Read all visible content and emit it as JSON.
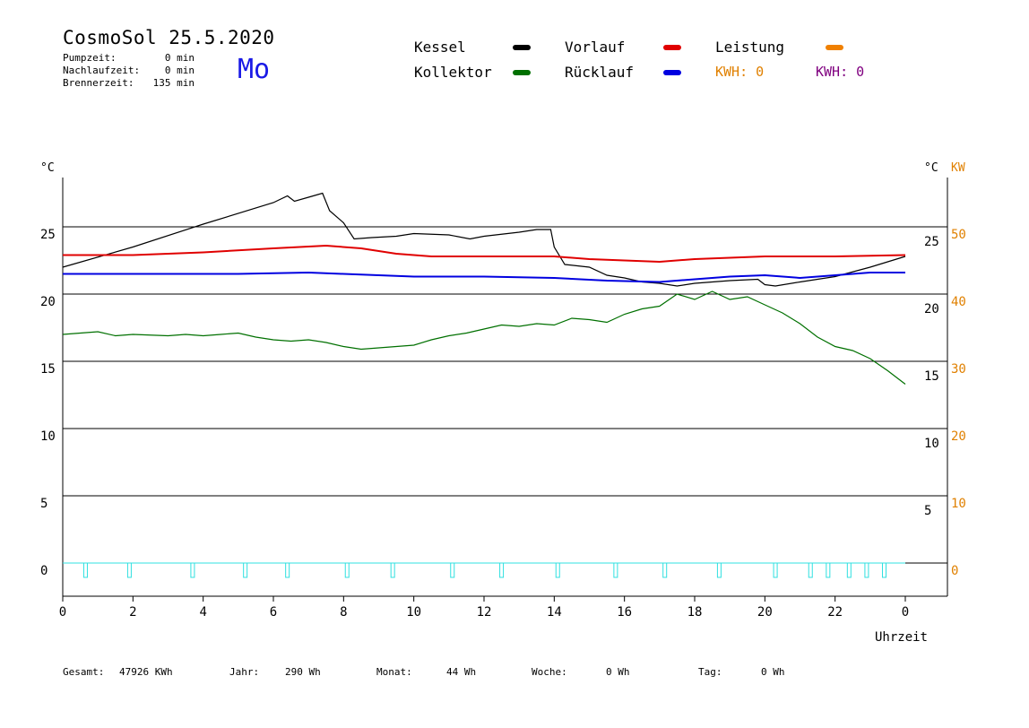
{
  "header": {
    "title": "CosmoSol 25.5.2020",
    "day": "Mo",
    "stats": [
      {
        "label": "Pumpzeit:",
        "value": "0 min"
      },
      {
        "label": "Nachlaufzeit:",
        "value": "0 min"
      },
      {
        "label": "Brennerzeit:",
        "value": "135 min"
      }
    ]
  },
  "legend": [
    {
      "label": "Kessel",
      "color": "#000000"
    },
    {
      "label": "Kollektor",
      "color": "#007000"
    },
    {
      "label": "Vorlauf",
      "color": "#e00000"
    },
    {
      "label": "Rücklauf",
      "color": "#0000e0"
    },
    {
      "label": "Leistung",
      "color": "#f08000"
    }
  ],
  "kwh": [
    {
      "text": "KWH: 0",
      "color": "#e08000"
    },
    {
      "text": "KWH: 0",
      "color": "#800080"
    }
  ],
  "axis_units": {
    "left": "°C",
    "right_c": "°C",
    "right_kw": "KW",
    "x": "Uhrzeit"
  },
  "footer": [
    {
      "label": "Gesamt:",
      "value": "47926 KWh"
    },
    {
      "label": "Jahr:",
      "value": "290 Wh"
    },
    {
      "label": "Monat:",
      "value": "44 Wh"
    },
    {
      "label": "Woche:",
      "value": "0 Wh"
    },
    {
      "label": "Tag:",
      "value": "0 Wh"
    }
  ],
  "chart_data": {
    "type": "line",
    "xlabel": "Uhrzeit",
    "ylabel": "°C",
    "xlim": [
      0,
      24
    ],
    "ylim": [
      -2.5,
      29
    ],
    "x_ticks": [
      "0",
      "2",
      "4",
      "6",
      "8",
      "10",
      "12",
      "14",
      "16",
      "18",
      "20",
      "22",
      "0"
    ],
    "y_ticks_left": [
      0,
      5,
      10,
      15,
      20,
      25
    ],
    "y_ticks_right_c": [
      5,
      10,
      15,
      20,
      25
    ],
    "y_ticks_right_kw": [
      0,
      10,
      20,
      30,
      40,
      50
    ],
    "grid": "horizontal",
    "series": [
      {
        "name": "Kessel",
        "color": "#000000",
        "points": [
          [
            0,
            22.0
          ],
          [
            2,
            23.5
          ],
          [
            4,
            25.2
          ],
          [
            6,
            26.8
          ],
          [
            6.4,
            27.3
          ],
          [
            6.6,
            26.9
          ],
          [
            7,
            27.2
          ],
          [
            7.4,
            27.5
          ],
          [
            7.6,
            26.2
          ],
          [
            8,
            25.3
          ],
          [
            8.3,
            24.1
          ],
          [
            8.8,
            24.2
          ],
          [
            9.5,
            24.3
          ],
          [
            10,
            24.5
          ],
          [
            11,
            24.4
          ],
          [
            11.6,
            24.1
          ],
          [
            12,
            24.3
          ],
          [
            13,
            24.6
          ],
          [
            13.5,
            24.8
          ],
          [
            13.9,
            24.8
          ],
          [
            14,
            23.5
          ],
          [
            14.3,
            22.2
          ],
          [
            15,
            22.0
          ],
          [
            15.5,
            21.4
          ],
          [
            16,
            21.2
          ],
          [
            16.5,
            20.9
          ],
          [
            17,
            20.8
          ],
          [
            17.5,
            20.6
          ],
          [
            18,
            20.8
          ],
          [
            19,
            21.0
          ],
          [
            19.8,
            21.1
          ],
          [
            20,
            20.7
          ],
          [
            20.3,
            20.6
          ],
          [
            21,
            20.9
          ],
          [
            22,
            21.3
          ],
          [
            23,
            22.0
          ],
          [
            24,
            22.8
          ]
        ]
      },
      {
        "name": "Vorlauf",
        "color": "#e00000",
        "points": [
          [
            0,
            22.9
          ],
          [
            2,
            22.9
          ],
          [
            4,
            23.1
          ],
          [
            6,
            23.4
          ],
          [
            7.5,
            23.6
          ],
          [
            8.5,
            23.4
          ],
          [
            9.5,
            23.0
          ],
          [
            10.5,
            22.8
          ],
          [
            12,
            22.8
          ],
          [
            14,
            22.8
          ],
          [
            15,
            22.6
          ],
          [
            16,
            22.5
          ],
          [
            17,
            22.4
          ],
          [
            18,
            22.6
          ],
          [
            20,
            22.8
          ],
          [
            22,
            22.8
          ],
          [
            24,
            22.9
          ]
        ]
      },
      {
        "name": "Rücklauf",
        "color": "#0000e0",
        "points": [
          [
            0,
            21.5
          ],
          [
            3,
            21.5
          ],
          [
            5,
            21.5
          ],
          [
            7,
            21.6
          ],
          [
            8,
            21.5
          ],
          [
            10,
            21.3
          ],
          [
            12,
            21.3
          ],
          [
            14,
            21.2
          ],
          [
            15.5,
            21.0
          ],
          [
            17,
            20.9
          ],
          [
            18,
            21.1
          ],
          [
            19,
            21.3
          ],
          [
            20,
            21.4
          ],
          [
            21,
            21.2
          ],
          [
            22,
            21.4
          ],
          [
            23,
            21.6
          ],
          [
            24,
            21.6
          ]
        ]
      },
      {
        "name": "Kollektor",
        "color": "#007000",
        "points": [
          [
            0,
            17.0
          ],
          [
            0.5,
            17.1
          ],
          [
            1,
            17.2
          ],
          [
            1.5,
            16.9
          ],
          [
            2,
            17.0
          ],
          [
            3,
            16.9
          ],
          [
            3.5,
            17.0
          ],
          [
            4,
            16.9
          ],
          [
            4.5,
            17.0
          ],
          [
            5,
            17.1
          ],
          [
            5.5,
            16.8
          ],
          [
            6,
            16.6
          ],
          [
            6.5,
            16.5
          ],
          [
            7,
            16.6
          ],
          [
            7.5,
            16.4
          ],
          [
            8,
            16.1
          ],
          [
            8.5,
            15.9
          ],
          [
            9,
            16.0
          ],
          [
            9.5,
            16.1
          ],
          [
            10,
            16.2
          ],
          [
            10.5,
            16.6
          ],
          [
            11,
            16.9
          ],
          [
            11.5,
            17.1
          ],
          [
            12,
            17.4
          ],
          [
            12.5,
            17.7
          ],
          [
            13,
            17.6
          ],
          [
            13.5,
            17.8
          ],
          [
            14,
            17.7
          ],
          [
            14.5,
            18.2
          ],
          [
            15,
            18.1
          ],
          [
            15.5,
            17.9
          ],
          [
            16,
            18.5
          ],
          [
            16.5,
            18.9
          ],
          [
            17,
            19.1
          ],
          [
            17.5,
            20.0
          ],
          [
            18,
            19.6
          ],
          [
            18.5,
            20.2
          ],
          [
            19,
            19.6
          ],
          [
            19.5,
            19.8
          ],
          [
            20,
            19.2
          ],
          [
            20.5,
            18.6
          ],
          [
            21,
            17.8
          ],
          [
            21.5,
            16.8
          ],
          [
            22,
            16.1
          ],
          [
            22.5,
            15.8
          ],
          [
            23,
            15.2
          ],
          [
            23.5,
            14.3
          ],
          [
            24,
            13.3
          ]
        ]
      }
    ],
    "burner_pulses": [
      0.65,
      1.9,
      3.7,
      5.2,
      6.4,
      8.1,
      9.4,
      11.1,
      12.5,
      14.1,
      15.75,
      17.15,
      18.7,
      20.3,
      21.3,
      21.8,
      22.4,
      22.9,
      23.4
    ],
    "burner_color": "#30e0e0"
  }
}
